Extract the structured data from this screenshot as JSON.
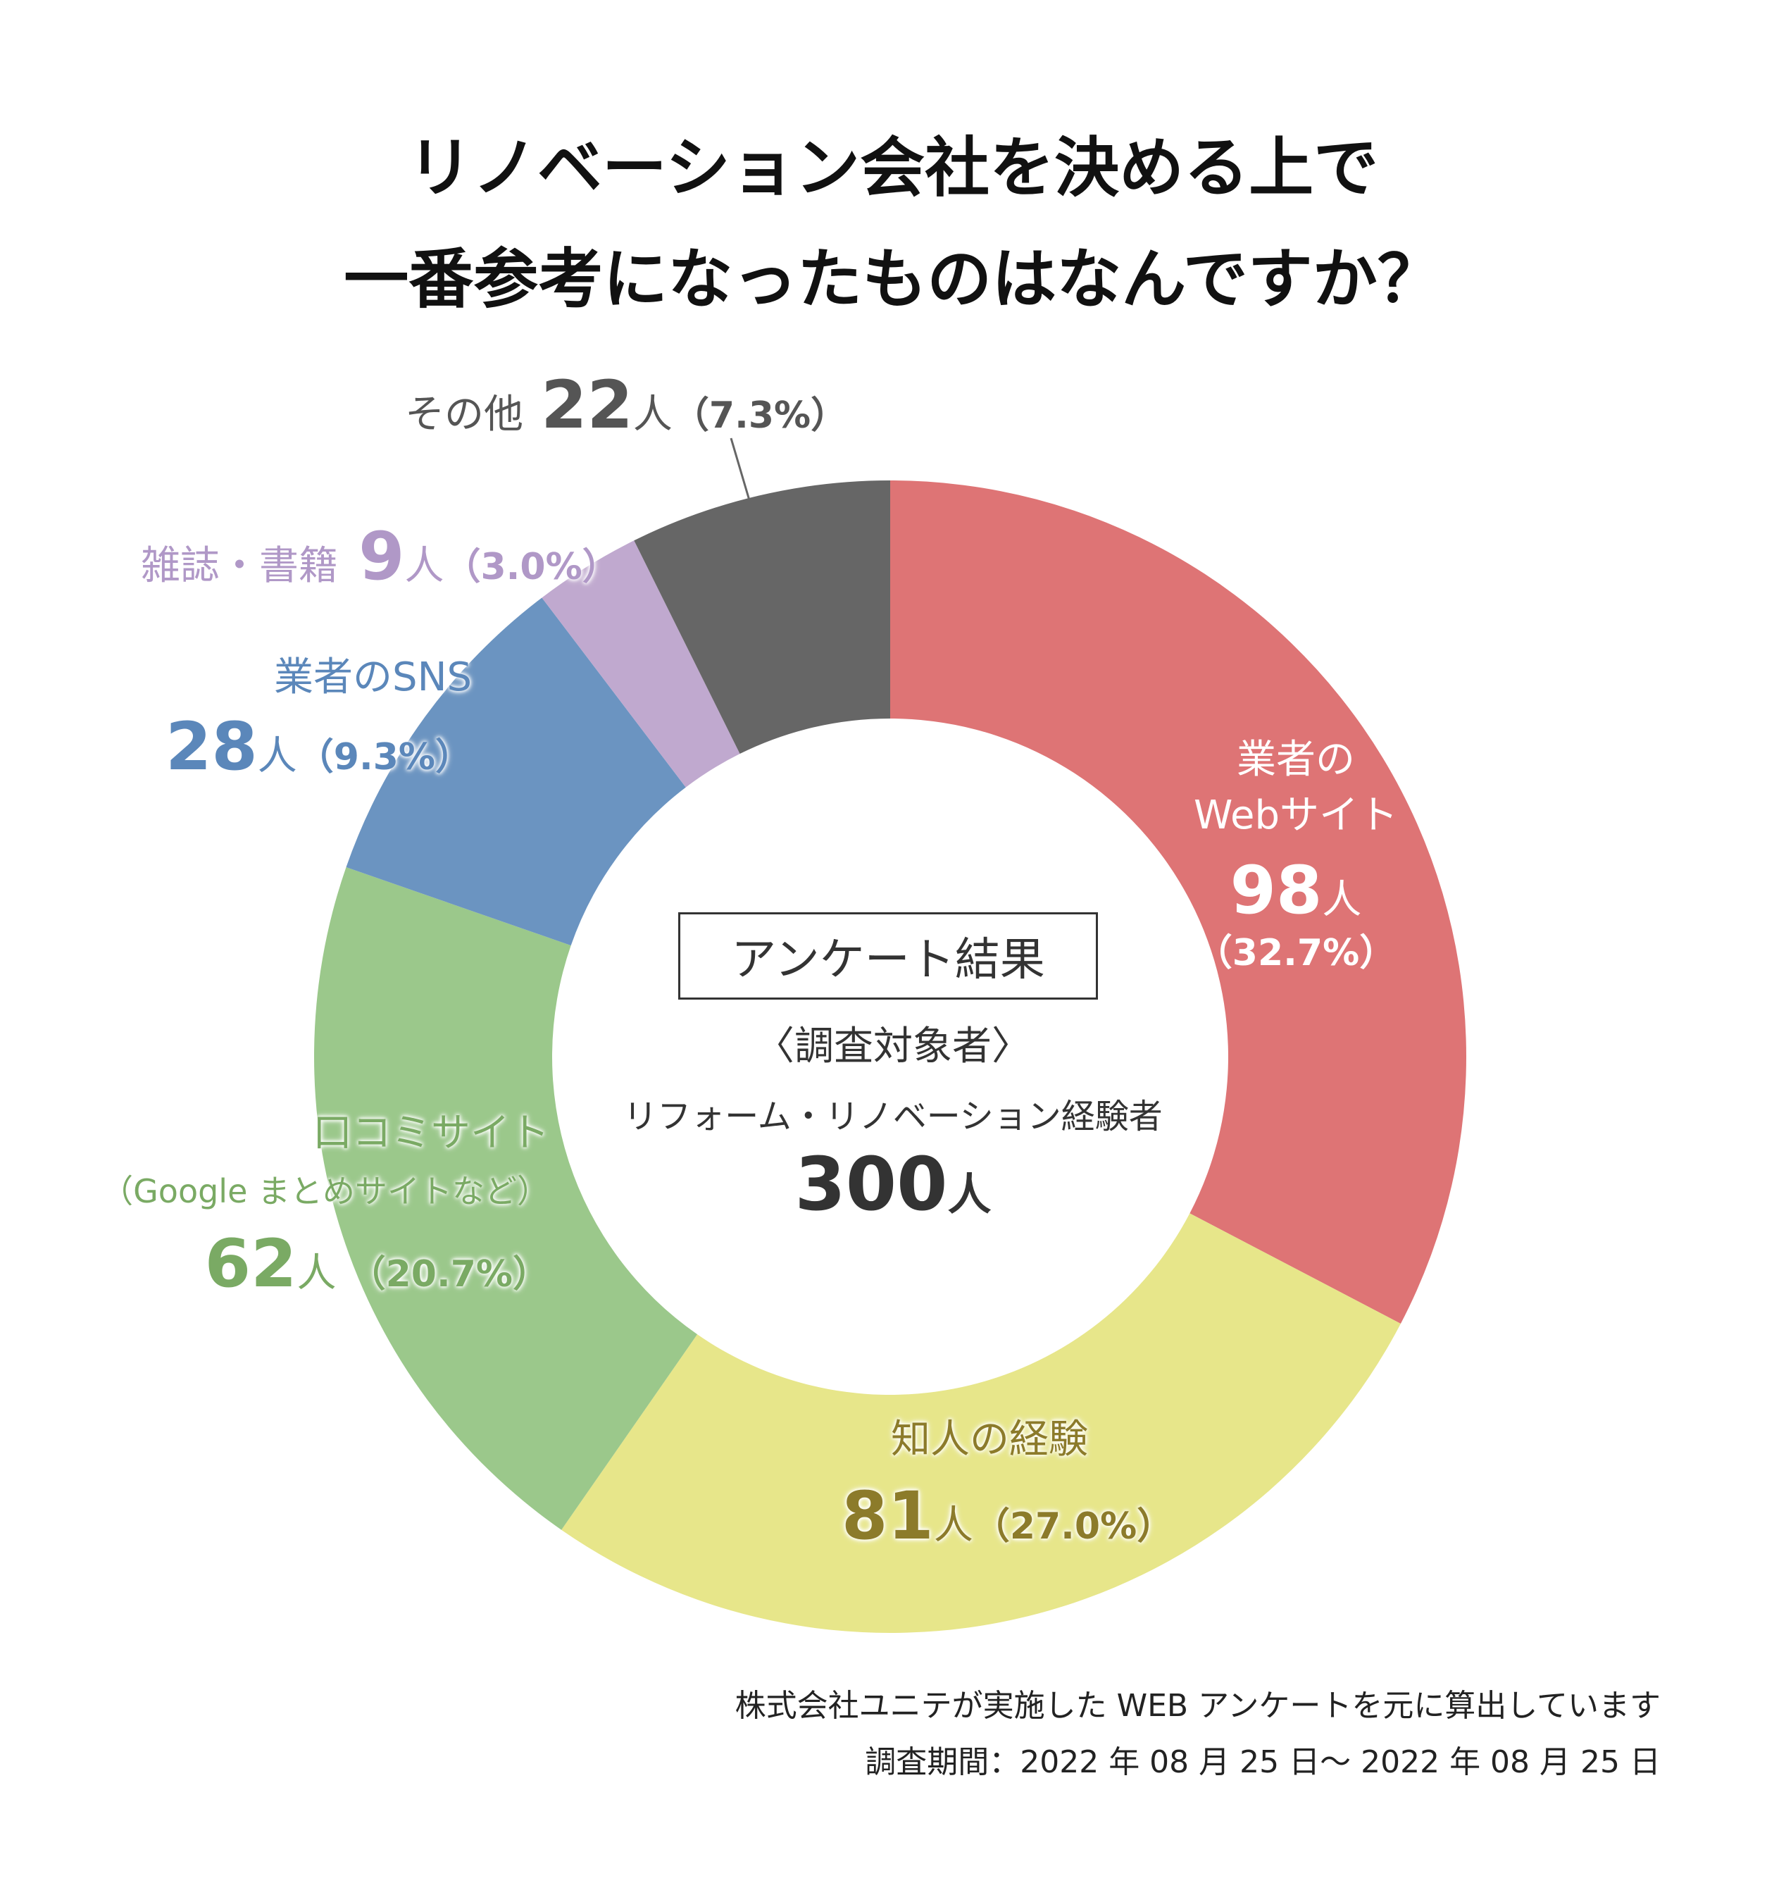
{
  "title": {
    "line1": "リノベーション会社を決める上で",
    "line2": "一番参考になったものはなんですか？"
  },
  "center": {
    "box_label": "アンケート結果",
    "target_label": "〈調査対象者〉",
    "target_desc": "リフォーム・リノベーション経験者",
    "total_number": "300",
    "total_unit": "人"
  },
  "footer": {
    "line1": "株式会社ユニテが実施した WEB アンケートを元に算出しています",
    "line2": "調査期間：2022 年 08 月 25 日〜 2022 年 08 月 25 日"
  },
  "colors": {
    "web": "#de7475",
    "friend": "#e7e68a",
    "review": "#9bc88b",
    "sns": "#6b94c1",
    "magazine": "#c0a9cf",
    "other": "#666666",
    "friend_text": "#8c7b2a",
    "review_text": "#7aaa64",
    "sns_text": "#5b87ba",
    "magazine_text": "#b098c7",
    "other_text": "#555555"
  },
  "chart_data": {
    "type": "pie",
    "style": "donut",
    "title": "リノベーション会社を決める上で一番参考になったものはなんですか？",
    "total": 300,
    "unit": "人",
    "slices": [
      {
        "key": "web",
        "label_line1": "業者の",
        "label_line2": "Webサイト",
        "value": 98,
        "value_text": "98",
        "unit": "人",
        "percent": 32.7,
        "percent_text": "（32.7%）"
      },
      {
        "key": "friend",
        "label_line1": "知人の経験",
        "value": 81,
        "value_text": "81",
        "unit": "人",
        "percent": 27.0,
        "percent_text": "（27.0%）"
      },
      {
        "key": "review",
        "label_line1": "口コミサイト",
        "label_line2": "（Google まとめサイトなど）",
        "value": 62,
        "value_text": "62",
        "unit": "人",
        "percent": 20.7,
        "percent_text": " （20.7%）"
      },
      {
        "key": "sns",
        "label_line1": "業者のSNS",
        "value": 28,
        "value_text": "28",
        "unit": "人",
        "percent": 9.3,
        "percent_text": "（9.3%）"
      },
      {
        "key": "magazine",
        "label_line1": "雑誌・書籍",
        "value": 9,
        "value_text": "9",
        "unit": "人",
        "percent": 3.0,
        "percent_text": "（3.0%）"
      },
      {
        "key": "other",
        "label_line1": "その他",
        "value": 22,
        "value_text": "22",
        "unit": "人",
        "percent": 7.3,
        "percent_text": "（7.3%）"
      }
    ]
  }
}
